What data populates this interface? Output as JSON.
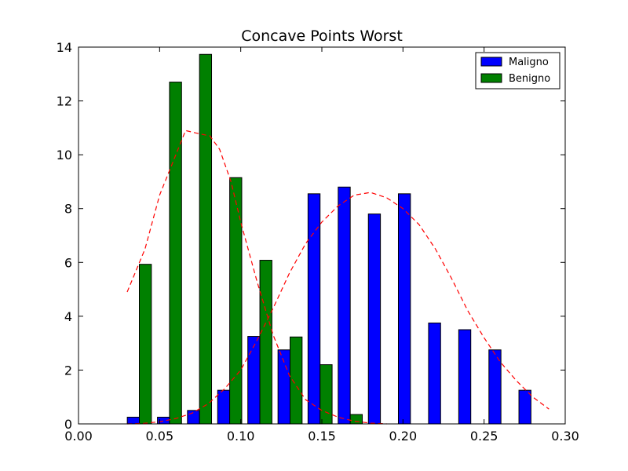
{
  "chart_data": {
    "type": "bar",
    "title": "Concave Points Worst",
    "xlabel": "",
    "ylabel": "",
    "xlim": [
      0.0,
      0.3
    ],
    "ylim": [
      0,
      14
    ],
    "x_ticks": [
      "0.00",
      "0.05",
      "0.10",
      "0.15",
      "0.20",
      "0.25",
      "0.30"
    ],
    "x_tick_values": [
      0.0,
      0.05,
      0.1,
      0.15,
      0.2,
      0.25,
      0.3
    ],
    "y_ticks": [
      "0",
      "2",
      "4",
      "6",
      "8",
      "10",
      "12",
      "14"
    ],
    "y_tick_values": [
      0,
      2,
      4,
      6,
      8,
      10,
      12,
      14
    ],
    "grid": false,
    "legend_position": "top-right",
    "bin_centers": [
      0.0375,
      0.0561,
      0.0746,
      0.0932,
      0.1118,
      0.1304,
      0.1489,
      0.1675,
      0.1861,
      0.2046,
      0.2232,
      0.2418,
      0.2604,
      0.2789
    ],
    "series": [
      {
        "name": "Maligno",
        "color": "#0000ff",
        "values": [
          0.25,
          0.25,
          0.5,
          1.25,
          3.25,
          2.75,
          8.55,
          8.8,
          7.8,
          8.55,
          3.75,
          3.5,
          2.75,
          1.25
        ]
      },
      {
        "name": "Benigno",
        "color": "#008000",
        "values": [
          5.93,
          12.7,
          13.73,
          9.15,
          6.08,
          3.23,
          2.2,
          0.35,
          0,
          0,
          0,
          0,
          0,
          0
        ]
      }
    ],
    "curves": [
      {
        "color": "#ff0000",
        "style": "dashed",
        "x": [
          0.03,
          0.041,
          0.05,
          0.06,
          0.066,
          0.073,
          0.081,
          0.087,
          0.094,
          0.1,
          0.11,
          0.12,
          0.13,
          0.14,
          0.15,
          0.16,
          0.17,
          0.18,
          0.19
        ],
        "y": [
          4.9,
          6.5,
          8.5,
          10.0,
          10.9,
          10.8,
          10.7,
          10.2,
          9.0,
          7.5,
          5.3,
          3.3,
          1.8,
          0.9,
          0.5,
          0.25,
          0.1,
          0.03,
          0.0
        ]
      },
      {
        "color": "#ff0000",
        "style": "dashed",
        "x": [
          0.03,
          0.04,
          0.05,
          0.06,
          0.07,
          0.08,
          0.09,
          0.1,
          0.11,
          0.12,
          0.13,
          0.14,
          0.15,
          0.16,
          0.17,
          0.18,
          0.19,
          0.2,
          0.21,
          0.22,
          0.23,
          0.24,
          0.25,
          0.26,
          0.27,
          0.28,
          0.29
        ],
        "y": [
          0.0,
          0.02,
          0.08,
          0.2,
          0.4,
          0.75,
          1.3,
          2.0,
          3.1,
          4.3,
          5.6,
          6.7,
          7.5,
          8.1,
          8.5,
          8.6,
          8.4,
          8.0,
          7.4,
          6.5,
          5.4,
          4.2,
          3.2,
          2.3,
          1.6,
          1.0,
          0.55
        ]
      }
    ]
  }
}
